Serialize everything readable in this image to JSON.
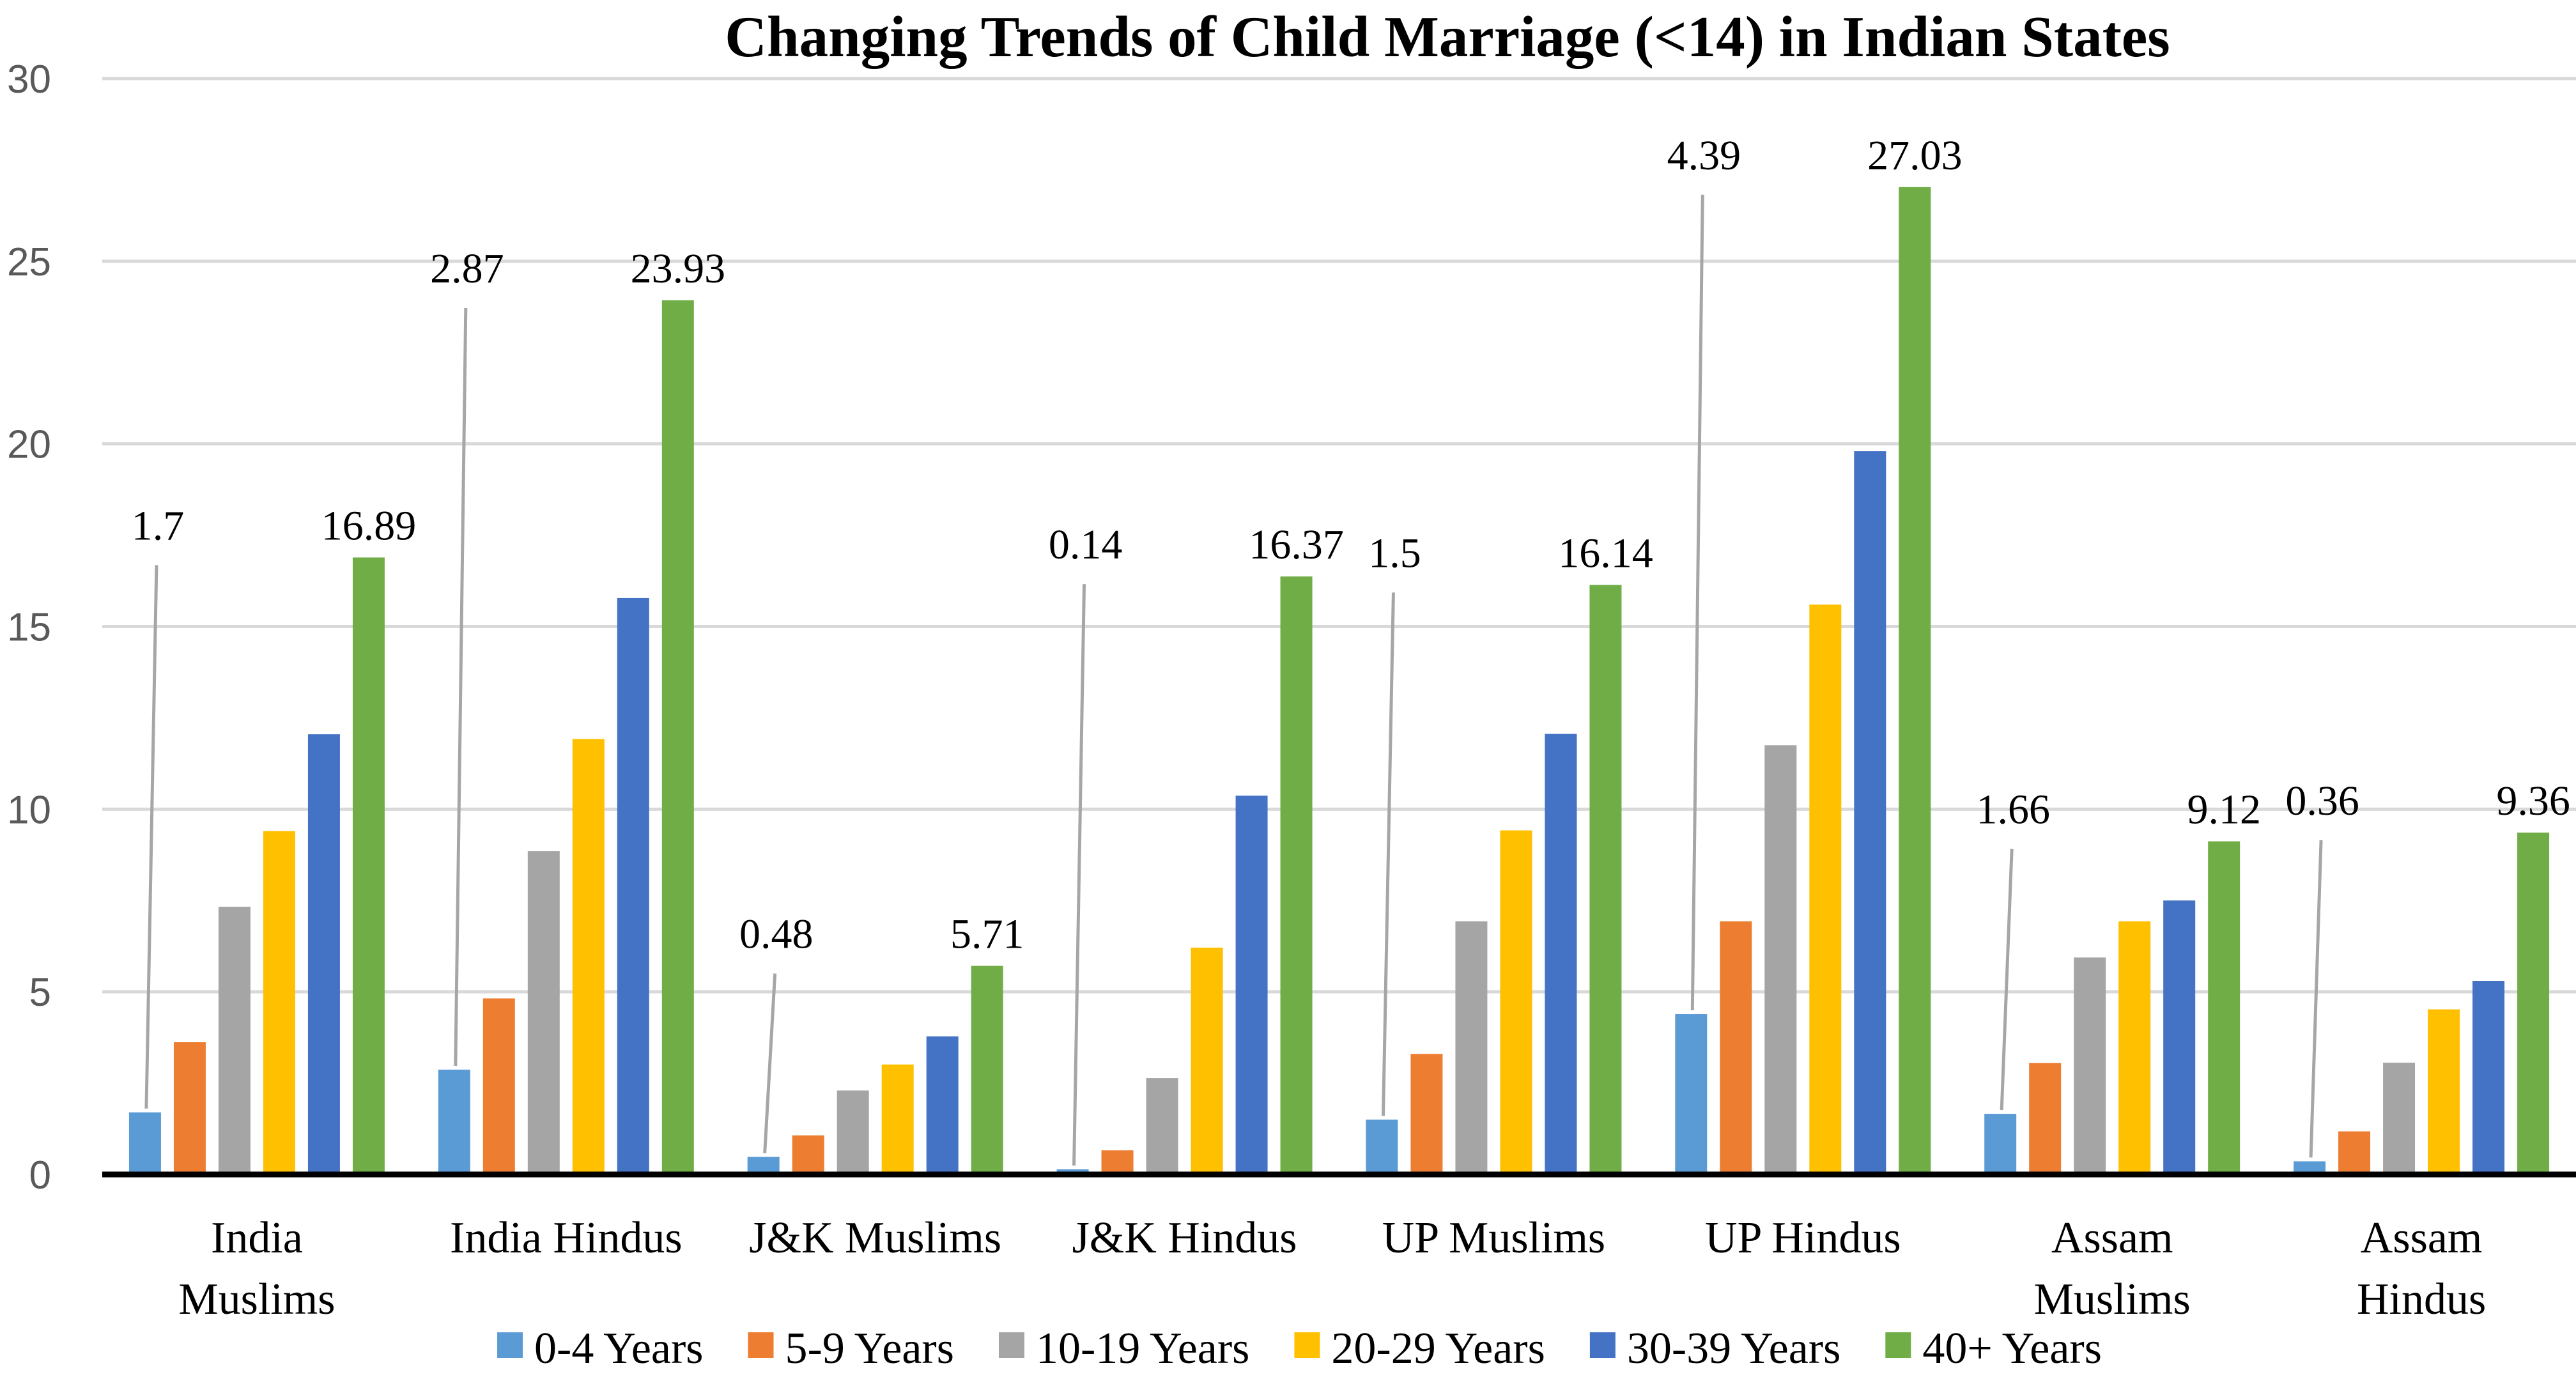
{
  "chart_data": {
    "type": "bar",
    "title": "Changing Trends of Child Marriage (<14) in Indian States",
    "xlabel": "",
    "ylabel": "",
    "ylim": [
      0,
      30
    ],
    "yticks": [
      0,
      5,
      10,
      15,
      20,
      25,
      30
    ],
    "grid": true,
    "legend_position": "bottom",
    "categories": [
      [
        "India",
        "Muslims"
      ],
      [
        "India Hindus"
      ],
      [
        "J&K Muslims"
      ],
      [
        "J&K Hindus"
      ],
      [
        "UP Muslims"
      ],
      [
        "UP Hindus"
      ],
      [
        "Assam",
        "Muslims"
      ],
      [
        "Assam",
        "Hindus"
      ]
    ],
    "series": [
      {
        "name": "0-4 Years",
        "color": "#5b9bd5",
        "values": [
          1.7,
          2.87,
          0.48,
          0.14,
          1.5,
          4.39,
          1.66,
          0.36
        ]
      },
      {
        "name": "5-9 Years",
        "color": "#ed7d31",
        "values": [
          3.62,
          4.82,
          1.07,
          0.66,
          3.3,
          6.93,
          3.05,
          1.18
        ]
      },
      {
        "name": "10-19 Years",
        "color": "#a5a5a5",
        "values": [
          7.33,
          8.85,
          2.3,
          2.64,
          6.93,
          11.75,
          5.94,
          3.06
        ]
      },
      {
        "name": "20-29 Years",
        "color": "#ffc000",
        "values": [
          9.4,
          11.92,
          3.01,
          6.21,
          9.42,
          15.6,
          6.93,
          4.52
        ]
      },
      {
        "name": "30-39 Years",
        "color": "#4472c4",
        "values": [
          12.05,
          15.78,
          3.78,
          10.37,
          12.06,
          19.8,
          7.5,
          5.3
        ]
      },
      {
        "name": "40+ Years",
        "color": "#70ad47",
        "values": [
          16.89,
          23.93,
          5.71,
          16.37,
          16.14,
          27.03,
          9.12,
          9.36
        ]
      }
    ],
    "data_labels": {
      "0-4 Years": [
        "1.7",
        "2.87",
        "0.48",
        "0.14",
        "1.5",
        "4.39",
        "1.66",
        "0.36"
      ],
      "40+ Years": [
        "16.89",
        "23.93",
        "5.71",
        "16.37",
        "16.14",
        "27.03",
        "9.12",
        "9.36"
      ]
    }
  }
}
